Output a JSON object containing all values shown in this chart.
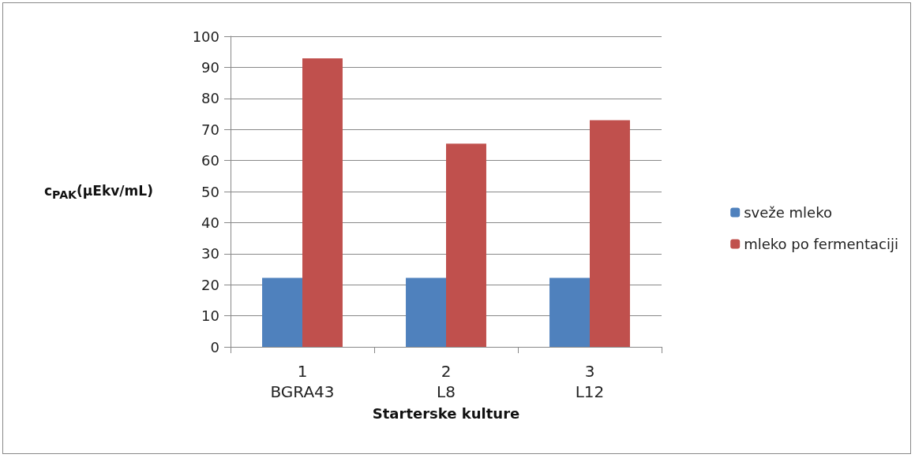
{
  "chart_data": {
    "type": "bar",
    "xlabel": "Starterske kulture",
    "ylabel": "c$_{PAK}$(μEkv/mL)",
    "categories": [
      "1\nBGRA43",
      "2\nL8",
      "3\nL12"
    ],
    "series": [
      {
        "name": "sveže mleko",
        "color": "#4f81bd",
        "values": [
          22.2,
          22.2,
          22.2
        ]
      },
      {
        "name": "mleko po fermentaciji",
        "color": "#c0504d",
        "values": [
          92.9,
          65.4,
          73.0
        ]
      }
    ],
    "ylim": [
      0,
      100
    ],
    "yticks": [
      0,
      10,
      20,
      30,
      40,
      50,
      60,
      70,
      80,
      90,
      100
    ],
    "grid": "y",
    "legend": "right"
  }
}
